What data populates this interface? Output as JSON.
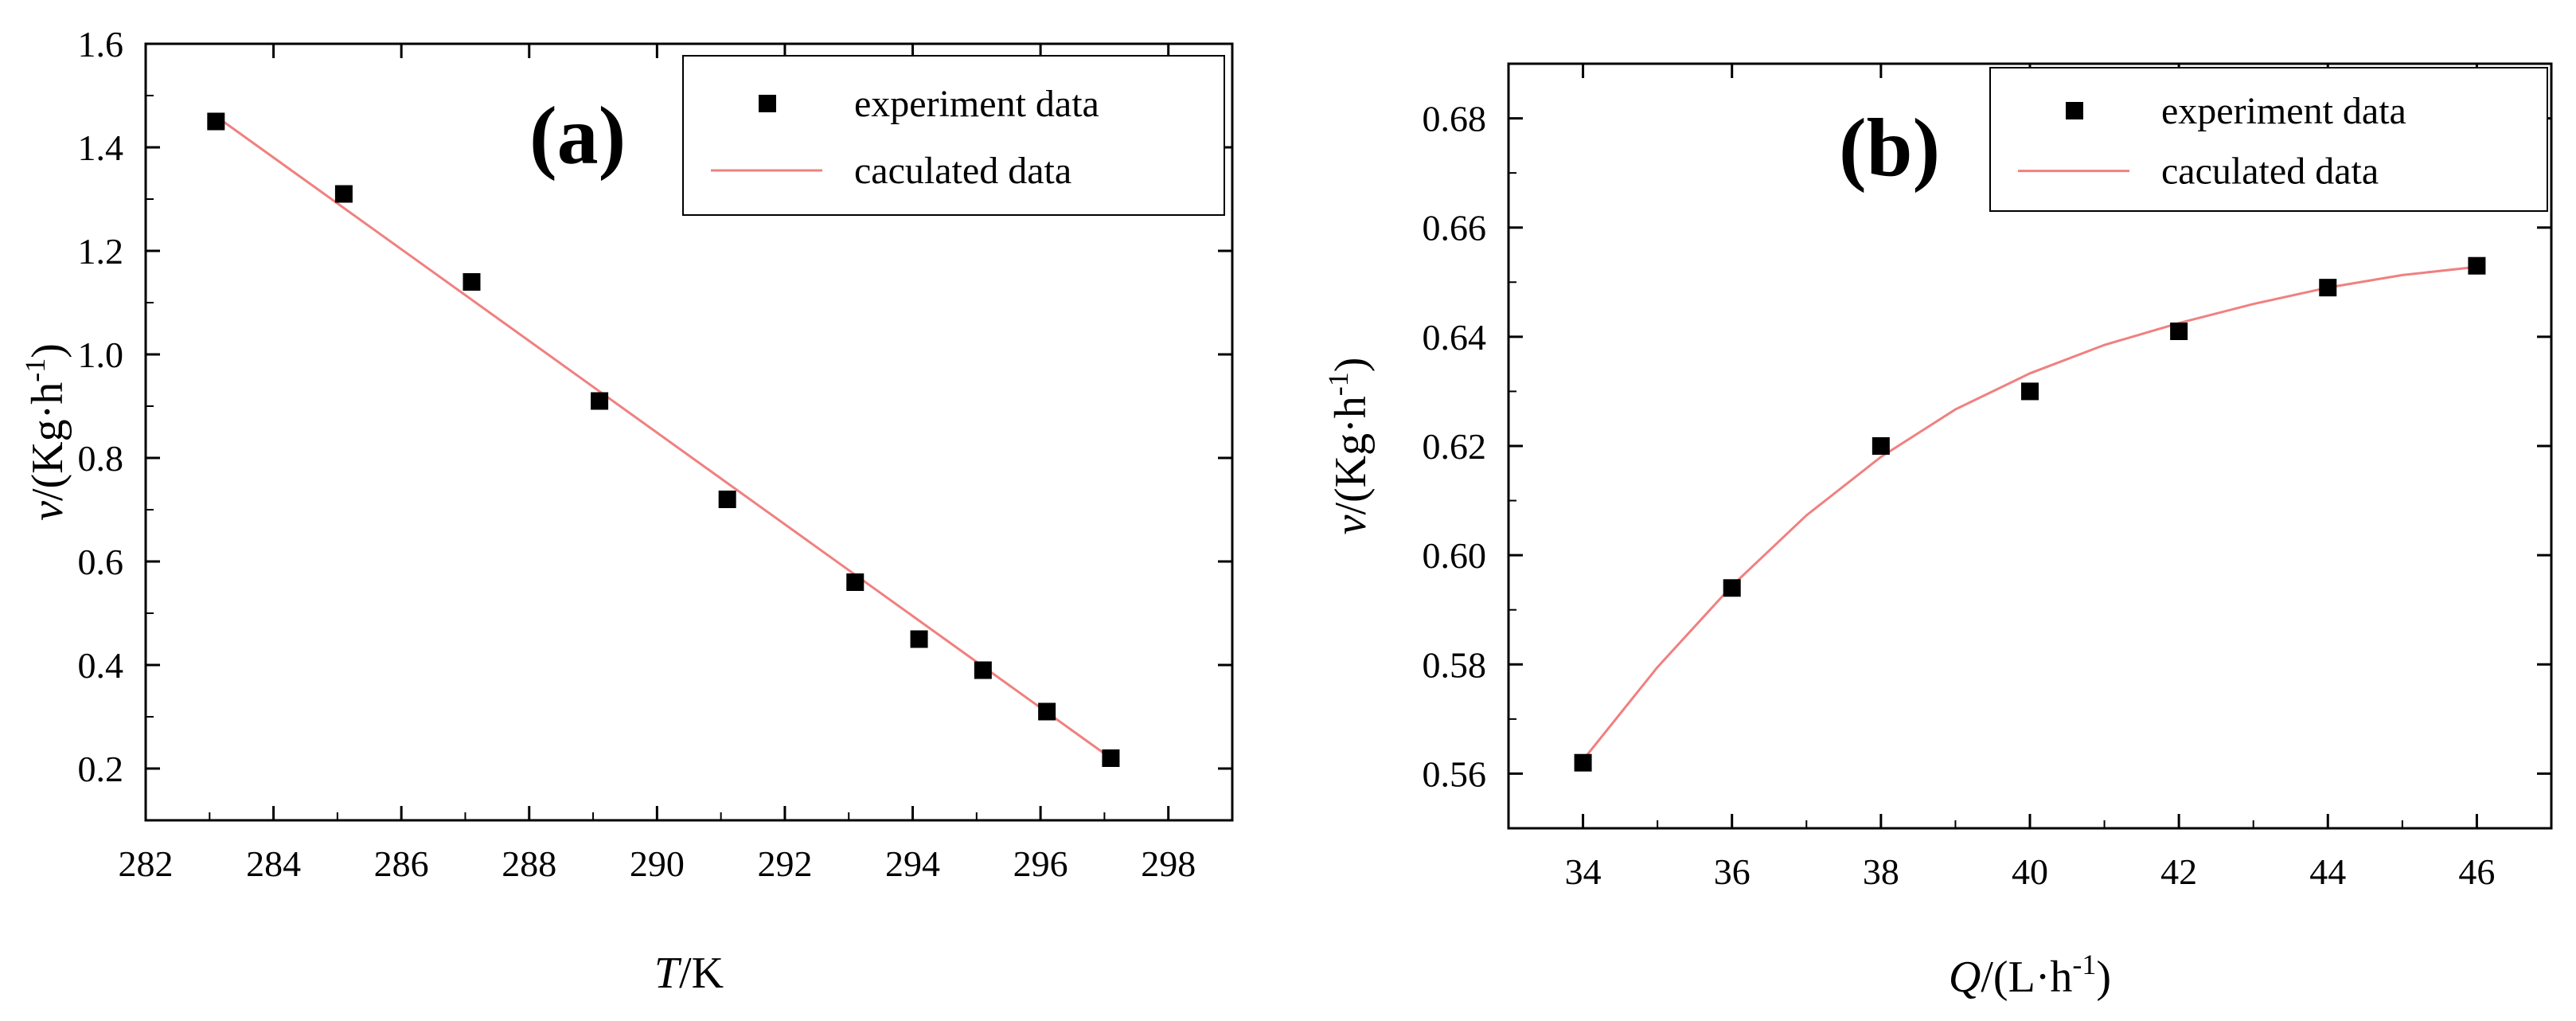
{
  "colors": {
    "marker": "#000000",
    "fit_line": "#f08080",
    "axis": "#000000",
    "legend_border": "#000000"
  },
  "chart_data": [
    {
      "type": "scatter",
      "panel_label": "(a)",
      "xlabel": {
        "symbol": "T",
        "unit": "/K"
      },
      "ylabel": {
        "symbol": "v",
        "unit": "/(Kg·h",
        "sup": "-1",
        "close": ")"
      },
      "xlim": [
        282,
        299
      ],
      "ylim": [
        0.1,
        1.6
      ],
      "xticks": [
        282,
        284,
        286,
        288,
        290,
        292,
        294,
        296,
        298
      ],
      "yticks": [
        0.2,
        0.4,
        0.6,
        0.8,
        1.0,
        1.2,
        1.4,
        1.6
      ],
      "xtick_labels": [
        "282",
        "284",
        "286",
        "288",
        "290",
        "292",
        "294",
        "296",
        "298"
      ],
      "ytick_labels": [
        "0.2",
        "0.4",
        "0.6",
        "0.8",
        "1.0",
        "1.2",
        "1.4",
        "1.6"
      ],
      "legend": {
        "position": "top-right",
        "entries": [
          "experiment data",
          "caculated data"
        ]
      },
      "series": [
        {
          "name": "experiment data",
          "kind": "points",
          "x": [
            283.1,
            285.1,
            287.1,
            289.1,
            291.1,
            293.1,
            294.1,
            295.1,
            296.1,
            297.1
          ],
          "y": [
            1.45,
            1.31,
            1.14,
            0.91,
            0.72,
            0.56,
            0.45,
            0.39,
            0.31,
            0.22
          ]
        },
        {
          "name": "caculated data",
          "kind": "line",
          "x": [
            283.1,
            297.1
          ],
          "y": [
            1.46,
            0.22
          ]
        }
      ]
    },
    {
      "type": "scatter",
      "panel_label": "(b)",
      "xlabel": {
        "symbol": "Q",
        "unit": "/(L·h",
        "sup": "-1",
        "close": ")"
      },
      "ylabel": {
        "symbol": "v",
        "unit": "/(Kg·h",
        "sup": "-1",
        "close": ")"
      },
      "xlim": [
        33,
        47
      ],
      "ylim": [
        0.55,
        0.69
      ],
      "xticks": [
        34,
        36,
        38,
        40,
        42,
        44,
        46
      ],
      "yticks": [
        0.56,
        0.58,
        0.6,
        0.62,
        0.64,
        0.66,
        0.68
      ],
      "xtick_labels": [
        "34",
        "36",
        "38",
        "40",
        "42",
        "44",
        "46"
      ],
      "ytick_labels": [
        "0.56",
        "0.58",
        "0.60",
        "0.62",
        "0.64",
        "0.66",
        "0.68"
      ],
      "legend": {
        "position": "top-right",
        "entries": [
          "experiment data",
          "caculated data"
        ]
      },
      "series": [
        {
          "name": "experiment data",
          "kind": "points",
          "x": [
            34,
            36,
            38,
            40,
            42,
            44,
            46
          ],
          "y": [
            0.562,
            0.594,
            0.62,
            0.63,
            0.641,
            0.649,
            0.653
          ]
        },
        {
          "name": "caculated data",
          "kind": "curve",
          "x": [
            34,
            35,
            36,
            37,
            38,
            39,
            40,
            41,
            42,
            43,
            44,
            45,
            46
          ],
          "y": [
            0.5625,
            0.5795,
            0.5944,
            0.6073,
            0.618,
            0.6267,
            0.6333,
            0.6385,
            0.6425,
            0.646,
            0.649,
            0.6513,
            0.6528
          ]
        }
      ]
    }
  ]
}
